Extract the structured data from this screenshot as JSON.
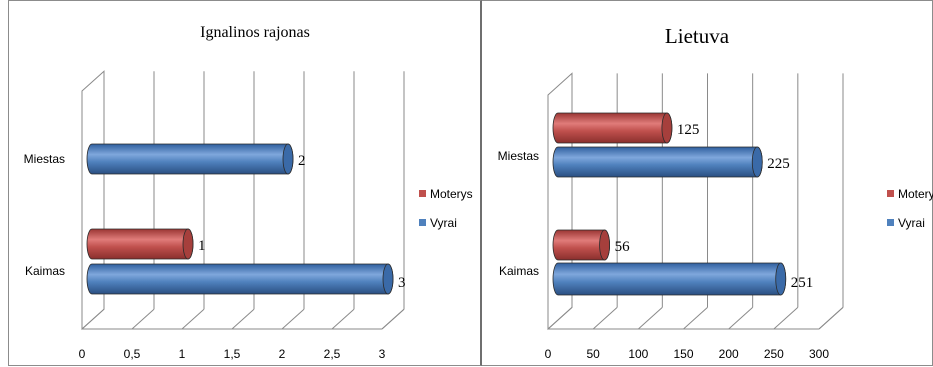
{
  "chart_data": [
    {
      "type": "bar",
      "orientation": "horizontal",
      "title": "Ignalinos rajonas",
      "categories": [
        "Miestas",
        "Kaimas"
      ],
      "series": [
        {
          "name": "Moterys",
          "color": "#c0504d",
          "values": [
            null,
            1
          ],
          "data_labels": [
            "",
            "1"
          ]
        },
        {
          "name": "Vyrai",
          "color": "#4f81bd",
          "values": [
            2,
            3
          ],
          "data_labels": [
            "2",
            "3"
          ]
        }
      ],
      "x_ticks": [
        "0",
        "0,5",
        "1",
        "1,5",
        "2",
        "2,5",
        "3"
      ],
      "xlim": [
        0,
        3
      ],
      "grid": true,
      "legend": "right"
    },
    {
      "type": "bar",
      "orientation": "horizontal",
      "title": "Lietuva",
      "categories": [
        "Miestas",
        "Kaimas"
      ],
      "series": [
        {
          "name": "Motery",
          "color": "#c0504d",
          "values": [
            125,
            56
          ],
          "data_labels": [
            "125",
            "56"
          ]
        },
        {
          "name": "Vyrai",
          "color": "#4f81bd",
          "values": [
            225,
            251
          ],
          "data_labels": [
            "225",
            "251"
          ]
        }
      ],
      "x_ticks": [
        "0",
        "50",
        "100",
        "150",
        "200",
        "250",
        "300"
      ],
      "xlim": [
        0,
        300
      ],
      "grid": true,
      "legend": "right"
    }
  ]
}
